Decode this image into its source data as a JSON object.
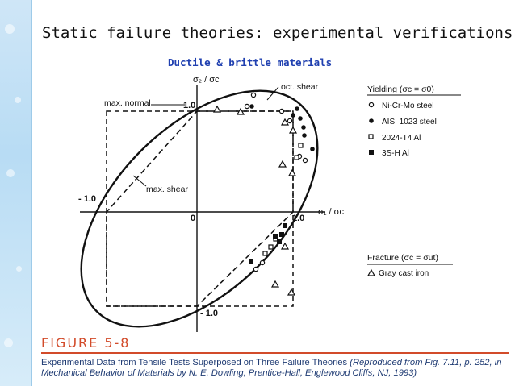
{
  "slide": {
    "title": "Static failure theories: experimental verifications",
    "subtitle": "Ductile & brittle materials"
  },
  "diagram": {
    "y_axis_label": "σ₂ / σc",
    "x_axis_label": "σ₁ / σc",
    "labels": {
      "max_normal": "max. normal",
      "oct_shear": "oct. shear",
      "max_shear": "max. shear",
      "pos_y_tick": "1.0",
      "neg_x_tick": "- 1.0",
      "origin": "0",
      "pos_x_tick": "1.0",
      "neg_y_tick": "- 1.0"
    },
    "legend": {
      "yielding_title": "Yielding (σc = σ0)",
      "yielding_items": [
        "Ni-Cr-Mo steel",
        "AISI 1023  steel",
        "2024-T4 Al",
        "3S-H Al"
      ],
      "fracture_title": "Fracture (σc = σut)",
      "fracture_items": [
        "Gray cast iron"
      ]
    }
  },
  "figure": {
    "label": "FIGURE 5-8",
    "caption_main": "Experimental Data from Tensile Tests Superposed on Three Failure Theories",
    "caption_ref": "(Reproduced from Fig. 7.11, p. 252, in Mechanical Behavior of Materials by N. E. Dowling, Prentice-Hall, Englewood Cliffs, NJ, 1993)"
  },
  "colors": {
    "accent": "#d24b2a",
    "caption": "#1f3b73",
    "subtitle": "#2040b0",
    "strip": "#b8dcf4"
  }
}
